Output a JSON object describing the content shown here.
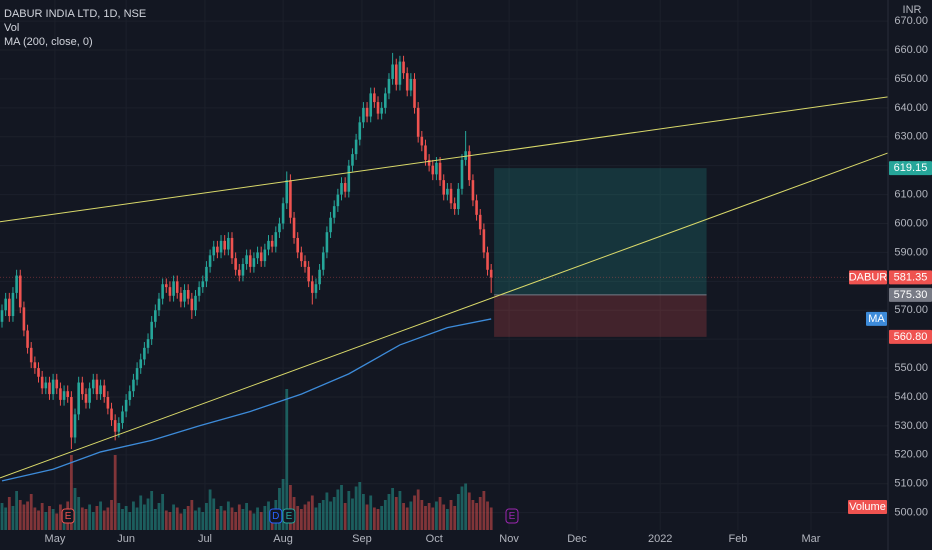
{
  "chart_data": {
    "type": "candlestick",
    "title": "DABUR INDIA LTD, 1D, NSE",
    "legend_items": [
      "Vol",
      "MA (200, close, 0)"
    ],
    "currency": "INR",
    "up_color": "#26a69a",
    "down_color": "#ef5350",
    "grid": true,
    "ylim": [
      494,
      677.3
    ],
    "yticks": [
      {
        "value": 670,
        "label": "670.00"
      },
      {
        "value": 660,
        "label": "660.00"
      },
      {
        "value": 650,
        "label": "650.00"
      },
      {
        "value": 640,
        "label": "640.00"
      },
      {
        "value": 630,
        "label": "630.00"
      },
      {
        "value": 620,
        "label": "620.00"
      },
      {
        "value": 610,
        "label": "610.00"
      },
      {
        "value": 600,
        "label": "600.00"
      },
      {
        "value": 590,
        "label": "590.00"
      },
      {
        "value": 580,
        "label": "580.00"
      },
      {
        "value": 570,
        "label": "570.00"
      },
      {
        "value": 560,
        "label": "560.00"
      },
      {
        "value": 550,
        "label": "550.00"
      },
      {
        "value": 540,
        "label": "540.00"
      },
      {
        "value": 530,
        "label": "530.00"
      },
      {
        "value": 520,
        "label": "520.00"
      },
      {
        "value": 510,
        "label": "510.00"
      },
      {
        "value": 500,
        "label": "500.00"
      }
    ],
    "xlim": [
      -0.55,
      242.7
    ],
    "xticks": [
      {
        "value": 14.5,
        "label": "May"
      },
      {
        "value": 34,
        "label": "Jun"
      },
      {
        "value": 55.6,
        "label": "Jul"
      },
      {
        "value": 77,
        "label": "Aug"
      },
      {
        "value": 98.6,
        "label": "Sep"
      },
      {
        "value": 118.4,
        "label": "Oct"
      },
      {
        "value": 138.9,
        "label": "Nov"
      },
      {
        "value": 157.5,
        "label": "Dec"
      },
      {
        "value": 180.3,
        "label": "2022"
      },
      {
        "value": 201.6,
        "label": "Feb"
      },
      {
        "value": 221.6,
        "label": "Mar"
      }
    ],
    "candles": [
      [
        566,
        572,
        564,
        570
      ],
      [
        570,
        576,
        568,
        574
      ],
      [
        574,
        576,
        566,
        568
      ],
      [
        568,
        578,
        566,
        576
      ],
      [
        576,
        584,
        574,
        582
      ],
      [
        582,
        584,
        569,
        571
      ],
      [
        571,
        573,
        561,
        563
      ],
      [
        563,
        565,
        555,
        557
      ],
      [
        557,
        559,
        550,
        552
      ],
      [
        552,
        554,
        548,
        550
      ],
      [
        550,
        552,
        545,
        547
      ],
      [
        547,
        549,
        541,
        543
      ],
      [
        543,
        547,
        541,
        545
      ],
      [
        545,
        547,
        539,
        541
      ],
      [
        541,
        548,
        539,
        546
      ],
      [
        546,
        548,
        541,
        543
      ],
      [
        543,
        545,
        537,
        539
      ],
      [
        539,
        544,
        537,
        542
      ],
      [
        542,
        544,
        538,
        540
      ],
      [
        540,
        542,
        522,
        526
      ],
      [
        526,
        536,
        524,
        534
      ],
      [
        534,
        547,
        532,
        545
      ],
      [
        545,
        547,
        539,
        541
      ],
      [
        541,
        543,
        536,
        538
      ],
      [
        538,
        545,
        536,
        543
      ],
      [
        543,
        548,
        541,
        546
      ],
      [
        546,
        548,
        539,
        541
      ],
      [
        541,
        546,
        539,
        544
      ],
      [
        544,
        546,
        538,
        540
      ],
      [
        540,
        542,
        534,
        536
      ],
      [
        536,
        538,
        530,
        532
      ],
      [
        532,
        534,
        525,
        528
      ],
      [
        528,
        533,
        526,
        531
      ],
      [
        531,
        537,
        529,
        535
      ],
      [
        535,
        541,
        533,
        539
      ],
      [
        539,
        544,
        537,
        542
      ],
      [
        542,
        548,
        540,
        546
      ],
      [
        546,
        552,
        544,
        550
      ],
      [
        550,
        555,
        548,
        553
      ],
      [
        553,
        559,
        551,
        557
      ],
      [
        557,
        562,
        555,
        560
      ],
      [
        560,
        568,
        558,
        566
      ],
      [
        566,
        572,
        564,
        570
      ],
      [
        570,
        576,
        568,
        574
      ],
      [
        574,
        581,
        572,
        579
      ],
      [
        579,
        581,
        576,
        578
      ],
      [
        578,
        580,
        573,
        575
      ],
      [
        575,
        582,
        573,
        580
      ],
      [
        580,
        582,
        574,
        576
      ],
      [
        576,
        578,
        571,
        573
      ],
      [
        573,
        579,
        571,
        577
      ],
      [
        577,
        579,
        572,
        574
      ],
      [
        574,
        576,
        567,
        570
      ],
      [
        570,
        577,
        568,
        575
      ],
      [
        575,
        580,
        573,
        578
      ],
      [
        578,
        582,
        576,
        580
      ],
      [
        580,
        587,
        578,
        585
      ],
      [
        585,
        591,
        583,
        589
      ],
      [
        589,
        594,
        587,
        592
      ],
      [
        592,
        594,
        588,
        590
      ],
      [
        590,
        596,
        588,
        594
      ],
      [
        594,
        596,
        589,
        591
      ],
      [
        591,
        597,
        589,
        595
      ],
      [
        595,
        597,
        586,
        588
      ],
      [
        588,
        590,
        582,
        584
      ],
      [
        584,
        586,
        580,
        582
      ],
      [
        582,
        588,
        580,
        586
      ],
      [
        586,
        591,
        584,
        589
      ],
      [
        589,
        591,
        583,
        585
      ],
      [
        585,
        590,
        583,
        588
      ],
      [
        588,
        592,
        586,
        590
      ],
      [
        590,
        592,
        585,
        587
      ],
      [
        587,
        593,
        585,
        591
      ],
      [
        591,
        596,
        589,
        594
      ],
      [
        594,
        596,
        590,
        592
      ],
      [
        592,
        599,
        590,
        597
      ],
      [
        597,
        602,
        595,
        600
      ],
      [
        600,
        609,
        598,
        607
      ],
      [
        607,
        618,
        605,
        615
      ],
      [
        615,
        617,
        600,
        602
      ],
      [
        602,
        604,
        593,
        595
      ],
      [
        595,
        597,
        588,
        590
      ],
      [
        590,
        592,
        585,
        587
      ],
      [
        587,
        589,
        583,
        585
      ],
      [
        585,
        587,
        578,
        580
      ],
      [
        580,
        582,
        572,
        576
      ],
      [
        576,
        581,
        574,
        579
      ],
      [
        579,
        586,
        577,
        584
      ],
      [
        584,
        592,
        582,
        590
      ],
      [
        590,
        599,
        588,
        597
      ],
      [
        597,
        604,
        595,
        602
      ],
      [
        602,
        608,
        600,
        606
      ],
      [
        606,
        612,
        604,
        610
      ],
      [
        610,
        616,
        608,
        614
      ],
      [
        614,
        616,
        609,
        611
      ],
      [
        611,
        622,
        609,
        620
      ],
      [
        620,
        626,
        618,
        624
      ],
      [
        624,
        631,
        622,
        629
      ],
      [
        629,
        637,
        627,
        635
      ],
      [
        635,
        642,
        633,
        640
      ],
      [
        640,
        642,
        635,
        637
      ],
      [
        637,
        647,
        635,
        645
      ],
      [
        645,
        647,
        640,
        642
      ],
      [
        642,
        644,
        636,
        638
      ],
      [
        638,
        642,
        636,
        640
      ],
      [
        640,
        647,
        638,
        645
      ],
      [
        645,
        652,
        643,
        650
      ],
      [
        650,
        659,
        648,
        655
      ],
      [
        655,
        657,
        646,
        648
      ],
      [
        648,
        658,
        646,
        656
      ],
      [
        656,
        658,
        650,
        652
      ],
      [
        652,
        654,
        644,
        646
      ],
      [
        646,
        652,
        644,
        650
      ],
      [
        650,
        652,
        638,
        640
      ],
      [
        640,
        642,
        628,
        630
      ],
      [
        630,
        632,
        625,
        627
      ],
      [
        627,
        629,
        620,
        622
      ],
      [
        622,
        624,
        618,
        620
      ],
      [
        620,
        622,
        615,
        617
      ],
      [
        617,
        623,
        615,
        621
      ],
      [
        621,
        623,
        613,
        615
      ],
      [
        615,
        617,
        608,
        610
      ],
      [
        610,
        614,
        608,
        612
      ],
      [
        612,
        614,
        605,
        607
      ],
      [
        607,
        609,
        603,
        605
      ],
      [
        605,
        614,
        603,
        612
      ],
      [
        612,
        624,
        610,
        622
      ],
      [
        622,
        632,
        620,
        625
      ],
      [
        625,
        627,
        613,
        615
      ],
      [
        615,
        617,
        606,
        608
      ],
      [
        608,
        610,
        601,
        603
      ],
      [
        603,
        605,
        596,
        598
      ],
      [
        598,
        600,
        588,
        590
      ],
      [
        590,
        592,
        582,
        584
      ],
      [
        584,
        586,
        576,
        581.35
      ]
    ],
    "volume_label": "Volume",
    "vlim": [
      0,
      10
    ],
    "volume": [
      1.8,
      1.5,
      2.2,
      1.6,
      2.6,
      2.0,
      1.7,
      1.9,
      2.4,
      1.5,
      1.3,
      1.8,
      1.2,
      1.6,
      1.4,
      1.1,
      1.7,
      1.3,
      1.9,
      5.0,
      2.8,
      2.2,
      1.5,
      1.4,
      1.7,
      1.2,
      1.6,
      1.9,
      1.3,
      1.5,
      2.0,
      5.0,
      1.8,
      1.4,
      1.6,
      1.2,
      1.9,
      1.5,
      2.3,
      1.7,
      2.1,
      2.6,
      1.4,
      1.8,
      2.4,
      1.3,
      1.2,
      1.7,
      1.5,
      1.1,
      1.4,
      1.6,
      2.0,
      1.3,
      1.5,
      1.2,
      1.8,
      2.7,
      2.1,
      1.4,
      1.6,
      1.3,
      1.9,
      1.5,
      1.2,
      1.7,
      1.4,
      1.8,
      1.3,
      1.1,
      1.5,
      1.2,
      1.6,
      1.9,
      1.4,
      2.0,
      2.8,
      3.4,
      9.4,
      3.0,
      2.2,
      1.6,
      1.4,
      1.7,
      1.9,
      2.3,
      1.5,
      1.8,
      2.0,
      2.5,
      1.9,
      2.2,
      2.7,
      3.0,
      1.8,
      2.6,
      2.1,
      2.9,
      3.2,
      2.4,
      1.7,
      2.3,
      1.5,
      1.4,
      1.6,
      2.0,
      2.4,
      2.8,
      2.2,
      2.6,
      1.8,
      1.5,
      1.9,
      2.3,
      2.7,
      2.0,
      1.6,
      1.8,
      1.5,
      1.9,
      2.2,
      1.7,
      1.4,
      2.0,
      1.6,
      2.4,
      2.9,
      3.1,
      2.5,
      2.0,
      1.8,
      2.2,
      2.6,
      1.9,
      1.5
    ],
    "ma": {
      "name": "MA",
      "color": "#3d8bd9",
      "x": [
        0,
        14,
        27,
        41,
        54,
        68,
        82,
        95,
        109,
        122,
        134
      ],
      "values": [
        511,
        515,
        521,
        525,
        530,
        535,
        541,
        548,
        558,
        564,
        567
      ]
    },
    "trendlines": [
      {
        "color": "#d9d96a",
        "points": [
          [
            -0.55,
            600.6
          ],
          [
            242.7,
            643.8
          ]
        ]
      },
      {
        "color": "#d9d96a",
        "points": [
          [
            -0.55,
            512
          ],
          [
            242.7,
            624.4
          ]
        ]
      }
    ],
    "position": {
      "x": [
        134.8,
        193
      ],
      "target": 619.15,
      "entry": {
        "value": 575.3,
        "label": "575.30"
      },
      "stop": {
        "value": 560.8,
        "label": "560.80"
      },
      "profit_color": "#26a69a",
      "loss_color": "#ef5350",
      "entry_color": "#787b86"
    },
    "last_price": {
      "name": "DABUR"
    },
    "events": [
      {
        "x": 18.1,
        "label": "E",
        "color": "#ef5350"
      },
      {
        "x": 75,
        "label": "D",
        "color": "#2962ff"
      },
      {
        "x": 78.6,
        "label": "E",
        "color": "#26a69a"
      },
      {
        "x": 139.7,
        "label": "E",
        "color": "#9c27b0"
      }
    ]
  }
}
